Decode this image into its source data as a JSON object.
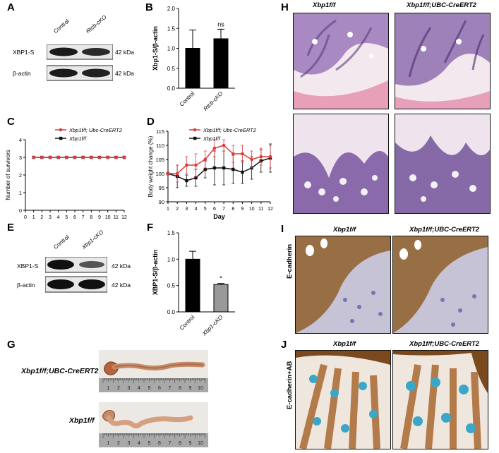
{
  "panels": {
    "A": "A",
    "B": "B",
    "C": "C",
    "D": "D",
    "E": "E",
    "F": "F",
    "G": "G",
    "H": "H",
    "I": "I",
    "J": "J"
  },
  "panelA": {
    "lanes": [
      "Control",
      "Rtcb-cKO"
    ],
    "rows": [
      {
        "name": "XBP1-S",
        "size": "42 kDa"
      },
      {
        "name": "β-actin",
        "size": "42 kDa"
      }
    ]
  },
  "panelE": {
    "lanes": [
      "Control",
      "Xbp1-cKO"
    ],
    "rows": [
      {
        "name": "XBP1-S",
        "size": "42 kDa"
      },
      {
        "name": "β-actin",
        "size": "42 kDa"
      }
    ]
  },
  "panelG": {
    "rows": [
      {
        "genotype": "Xbp1f/f;UBC-CreERT2"
      },
      {
        "genotype": "Xbp1f/f"
      }
    ],
    "ruler_ticks": [
      "1",
      "2",
      "3",
      "4",
      "5",
      "6",
      "7",
      "8",
      "9",
      "10"
    ]
  },
  "panelH": {
    "cols": [
      "Xbp1f/f",
      "Xbp1f/f;UBC-CreERT2"
    ]
  },
  "panelI": {
    "cols": [
      "Xbp1f/f",
      "Xbp1f/f;UBC-CreERT2"
    ],
    "side": "E-cadherin"
  },
  "panelJ": {
    "cols": [
      "Xbp1f/f",
      "Xbp1f/f;UBC-CreERT2"
    ],
    "side": "E-cadherin+AB"
  },
  "chart_data": [
    {
      "id": "B",
      "type": "bar",
      "categories": [
        "Control",
        "Rtcb-cKO"
      ],
      "values": [
        1.0,
        1.24
      ],
      "errors": [
        0.46,
        0.24
      ],
      "ylabel": "Xbp1-S/β-actin",
      "ylim": [
        0,
        2.0
      ],
      "yticks": [
        "0.0",
        "0.5",
        "1.0",
        "1.5",
        "2.0"
      ],
      "annotation": "ns",
      "bar_color": "#000000"
    },
    {
      "id": "C",
      "type": "line",
      "x": [
        1,
        2,
        3,
        4,
        5,
        6,
        7,
        8,
        9,
        10,
        11,
        12
      ],
      "xticks": [
        "0",
        "1",
        "2",
        "3",
        "4",
        "5",
        "6",
        "7",
        "8",
        "9",
        "10",
        "11",
        "12"
      ],
      "xlabel": "Day",
      "ylabel": "Number of survivors",
      "ylim": [
        0,
        4
      ],
      "yticks": [
        "0",
        "1",
        "2",
        "3",
        "4"
      ],
      "series": [
        {
          "name": "Xbp1f/f; Ubc-CreERT2",
          "color": "#e03a3a",
          "values": [
            3,
            3,
            3,
            3,
            3,
            3,
            3,
            3,
            3,
            3,
            3,
            3
          ]
        },
        {
          "name": "Xbp1f/f",
          "color": "#111111",
          "values": [
            3,
            3,
            3,
            3,
            3,
            3,
            3,
            3,
            3,
            3,
            3,
            3
          ]
        }
      ]
    },
    {
      "id": "D",
      "type": "line",
      "x": [
        1,
        2,
        3,
        4,
        5,
        6,
        7,
        8,
        9,
        10,
        11,
        12
      ],
      "xticks": [
        "1",
        "2",
        "3",
        "4",
        "5",
        "6",
        "7",
        "8",
        "9",
        "10",
        "11",
        "12"
      ],
      "xlabel": "Day",
      "ylabel": "Body weight change (%)",
      "ylim": [
        90,
        115
      ],
      "yticks": [
        "90",
        "95",
        "100",
        "105",
        "110",
        "115"
      ],
      "series": [
        {
          "name": "Xbp1f/f; Ubc-CreERT2",
          "color": "#e03a3a",
          "values": [
            100,
            100,
            103,
            103,
            105,
            109,
            110,
            107,
            107,
            105,
            106,
            106
          ],
          "errors": [
            0.5,
            3,
            3,
            4,
            3,
            3,
            2,
            3,
            3,
            3,
            3,
            4
          ]
        },
        {
          "name": "Xbp1f/f",
          "color": "#111111",
          "values": [
            100,
            99,
            97.5,
            98.5,
            101.5,
            102,
            102,
            101.5,
            100.5,
            102,
            104.5,
            105.5
          ],
          "errors": [
            0.5,
            4,
            2,
            3,
            3,
            6,
            6,
            5,
            4,
            4,
            4,
            5
          ]
        }
      ]
    },
    {
      "id": "F",
      "type": "bar",
      "categories": [
        "Control",
        "Xbp1-cKO"
      ],
      "values": [
        1.0,
        0.52
      ],
      "errors": [
        0.15,
        0.02
      ],
      "colors": [
        "#000000",
        "#999999"
      ],
      "ylabel": "XBP1-S/β-actin",
      "ylim": [
        0,
        1.5
      ],
      "yticks": [
        "0.0",
        "0.5",
        "1.0",
        "1.5"
      ],
      "annotation": "*"
    }
  ]
}
